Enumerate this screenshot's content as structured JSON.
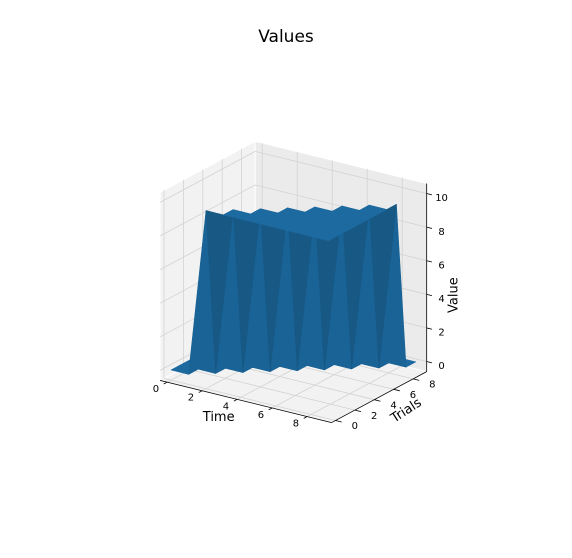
{
  "chart_data": {
    "type": "surface3d",
    "title": "Values",
    "xlabel": "Time",
    "ylabel": "Trials",
    "zlabel": "Value",
    "x": [
      0,
      1,
      2,
      3,
      4,
      5,
      6,
      7,
      8,
      9
    ],
    "y": [
      0,
      1,
      2,
      3,
      4,
      5,
      6,
      7,
      8,
      9
    ],
    "x_ticks": [
      0,
      2,
      4,
      6,
      8
    ],
    "y_ticks": [
      0,
      2,
      4,
      6,
      8
    ],
    "z_ticks": [
      0,
      2,
      4,
      6,
      8,
      10
    ],
    "xlim": [
      0,
      9
    ],
    "ylim": [
      0,
      9
    ],
    "zlim": [
      0,
      10
    ],
    "z_rule": "z = 10 where time >= trials + 2, else 0",
    "grid": true,
    "colors": {
      "surface": "#1f77b4",
      "pane_left": "#f2f2f2",
      "pane_back": "#ebebeb",
      "floor": "#f2f2f2",
      "grid": "#d3d3d3"
    }
  }
}
